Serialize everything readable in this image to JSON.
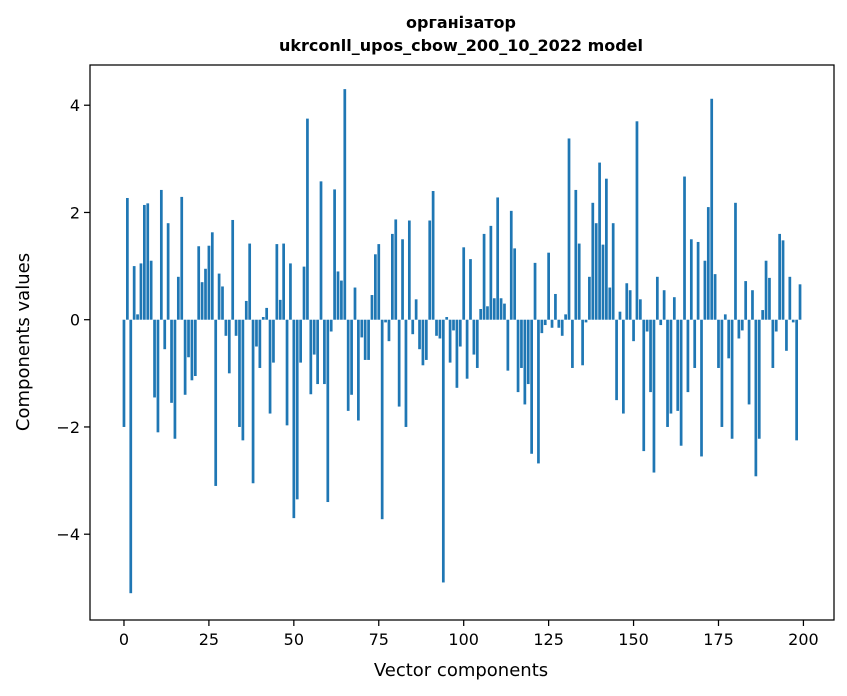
{
  "chart_data": {
    "type": "bar",
    "title": "організатор",
    "subtitle": "ukrconll_upos_cbow_200_10_2022 model",
    "xlabel": "Vector components",
    "ylabel": "Components values",
    "xlim": [
      -10,
      209
    ],
    "ylim": [
      -5.6,
      4.75
    ],
    "xticks": [
      0,
      25,
      50,
      75,
      100,
      125,
      150,
      175,
      200
    ],
    "yticks": [
      -4,
      -2,
      0,
      2,
      4
    ],
    "ytick_labels": [
      "−4",
      "−2",
      "0",
      "2",
      "4"
    ],
    "grid": false,
    "bar_color": "#1f77b4",
    "x": [
      0,
      1,
      2,
      3,
      4,
      5,
      6,
      7,
      8,
      9,
      10,
      11,
      12,
      13,
      14,
      15,
      16,
      17,
      18,
      19,
      20,
      21,
      22,
      23,
      24,
      25,
      26,
      27,
      28,
      29,
      30,
      31,
      32,
      33,
      34,
      35,
      36,
      37,
      38,
      39,
      40,
      41,
      42,
      43,
      44,
      45,
      46,
      47,
      48,
      49,
      50,
      51,
      52,
      53,
      54,
      55,
      56,
      57,
      58,
      59,
      60,
      61,
      62,
      63,
      64,
      65,
      66,
      67,
      68,
      69,
      70,
      71,
      72,
      73,
      74,
      75,
      76,
      77,
      78,
      79,
      80,
      81,
      82,
      83,
      84,
      85,
      86,
      87,
      88,
      89,
      90,
      91,
      92,
      93,
      94,
      95,
      96,
      97,
      98,
      99,
      100,
      101,
      102,
      103,
      104,
      105,
      106,
      107,
      108,
      109,
      110,
      111,
      112,
      113,
      114,
      115,
      116,
      117,
      118,
      119,
      120,
      121,
      122,
      123,
      124,
      125,
      126,
      127,
      128,
      129,
      130,
      131,
      132,
      133,
      134,
      135,
      136,
      137,
      138,
      139,
      140,
      141,
      142,
      143,
      144,
      145,
      146,
      147,
      148,
      149,
      150,
      151,
      152,
      153,
      154,
      155,
      156,
      157,
      158,
      159,
      160,
      161,
      162,
      163,
      164,
      165,
      166,
      167,
      168,
      169,
      170,
      171,
      172,
      173,
      174,
      175,
      176,
      177,
      178,
      179,
      180,
      181,
      182,
      183,
      184,
      185,
      186,
      187,
      188,
      189,
      190,
      191,
      192,
      193,
      194,
      195,
      196,
      197,
      198,
      199
    ],
    "values": [
      -2.0,
      2.27,
      -5.1,
      1.0,
      0.1,
      1.05,
      2.14,
      2.17,
      1.1,
      -1.45,
      -2.1,
      2.42,
      -0.55,
      1.8,
      -1.55,
      -2.22,
      0.8,
      2.29,
      -1.4,
      -0.7,
      -1.13,
      -1.05,
      1.37,
      0.7,
      0.95,
      1.38,
      1.63,
      -3.1,
      0.86,
      0.62,
      -0.3,
      -1.0,
      1.86,
      -0.3,
      -2.0,
      -2.25,
      0.35,
      1.42,
      -3.05,
      -0.5,
      -0.9,
      0.05,
      0.22,
      -1.75,
      -0.8,
      1.41,
      0.37,
      1.42,
      -1.97,
      1.05,
      -3.7,
      -3.35,
      -0.8,
      0.99,
      3.75,
      -1.39,
      -0.65,
      -1.2,
      2.58,
      -1.2,
      -3.4,
      -0.22,
      2.43,
      0.9,
      0.73,
      4.3,
      -1.7,
      -1.4,
      0.6,
      -1.88,
      -0.33,
      -0.75,
      -0.75,
      0.46,
      1.22,
      1.41,
      -3.72,
      -0.05,
      -0.4,
      1.6,
      1.87,
      -1.62,
      1.5,
      -2.0,
      1.85,
      -0.27,
      0.38,
      -0.55,
      -0.85,
      -0.75,
      1.85,
      2.4,
      -0.3,
      -0.35,
      -4.9,
      0.05,
      -0.8,
      -0.2,
      -1.27,
      -0.5,
      1.35,
      -1.1,
      1.13,
      -0.65,
      -0.9,
      0.2,
      1.6,
      0.25,
      1.75,
      0.4,
      2.28,
      0.4,
      0.3,
      -0.95,
      2.03,
      1.33,
      -1.35,
      -0.9,
      -1.58,
      -1.2,
      -2.5,
      1.06,
      -2.68,
      -0.25,
      -0.1,
      1.25,
      -0.15,
      0.48,
      -0.15,
      -0.3,
      0.1,
      3.38,
      -0.9,
      2.42,
      1.42,
      -0.85,
      -0.05,
      0.8,
      2.18,
      1.8,
      2.93,
      1.4,
      2.63,
      0.6,
      1.8,
      -1.5,
      0.15,
      -1.75,
      0.68,
      0.55,
      -0.4,
      3.7,
      0.38,
      -2.45,
      -0.22,
      -1.35,
      -2.85,
      0.8,
      -0.1,
      0.55,
      -2.0,
      -1.75,
      0.42,
      -1.7,
      -2.35,
      2.67,
      -1.35,
      1.5,
      -0.9,
      1.45,
      -2.55,
      1.1,
      2.1,
      4.12,
      0.85,
      -0.9,
      -2.0,
      0.1,
      -0.72,
      -2.22,
      2.18,
      -0.35,
      -0.2,
      0.72,
      -1.58,
      0.55,
      -2.92,
      -2.22,
      0.18,
      1.1,
      0.78,
      -0.9,
      -0.22,
      1.6,
      1.48,
      -0.58,
      0.8,
      -0.05,
      -2.25,
      0.66
    ]
  }
}
